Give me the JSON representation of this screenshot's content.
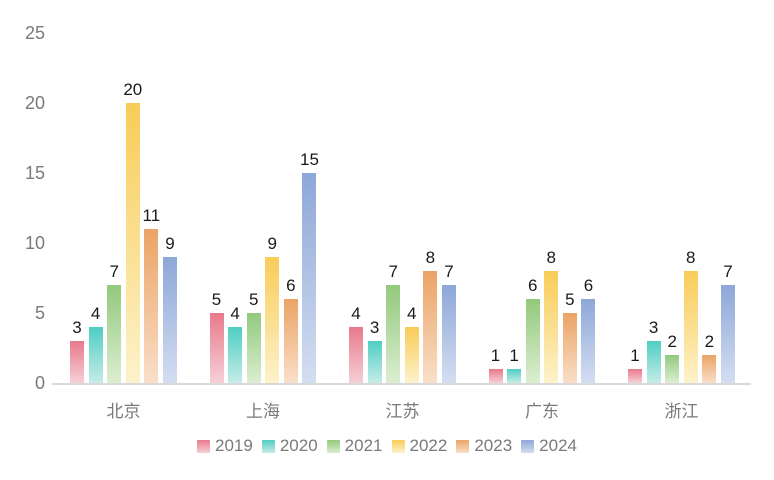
{
  "chart_data": {
    "type": "bar",
    "title": "",
    "categories": [
      "北京",
      "上海",
      "江苏",
      "广东",
      "浙江"
    ],
    "series": [
      {
        "name": "2019",
        "values": [
          3,
          5,
          4,
          1,
          1
        ],
        "color_top": "#E8798C",
        "color_bottom": "#F6D0D6"
      },
      {
        "name": "2020",
        "values": [
          4,
          4,
          3,
          1,
          3
        ],
        "color_top": "#4FCEC3",
        "color_bottom": "#C6ECE7"
      },
      {
        "name": "2021",
        "values": [
          7,
          5,
          7,
          6,
          2
        ],
        "color_top": "#92C97C",
        "color_bottom": "#DCEED1"
      },
      {
        "name": "2022",
        "values": [
          20,
          9,
          4,
          8,
          8
        ],
        "color_top": "#F8CC58",
        "color_bottom": "#FDF2CA"
      },
      {
        "name": "2023",
        "values": [
          11,
          6,
          8,
          5,
          2
        ],
        "color_top": "#EBA365",
        "color_bottom": "#F9DFC9"
      },
      {
        "name": "2024",
        "values": [
          9,
          15,
          7,
          6,
          7
        ],
        "color_top": "#8DA7D8",
        "color_bottom": "#D4DEF1"
      }
    ],
    "ylim": [
      0,
      25
    ],
    "yticks": [
      0,
      5,
      10,
      15,
      20,
      25
    ],
    "grid": false,
    "legend_position": "bottom",
    "data_labels": true
  },
  "colors": {
    "background": "#FFFFFF",
    "axis_line": "#D9D9D9",
    "tick_label": "#7A7A7A",
    "data_label": "#1A1A1A"
  }
}
